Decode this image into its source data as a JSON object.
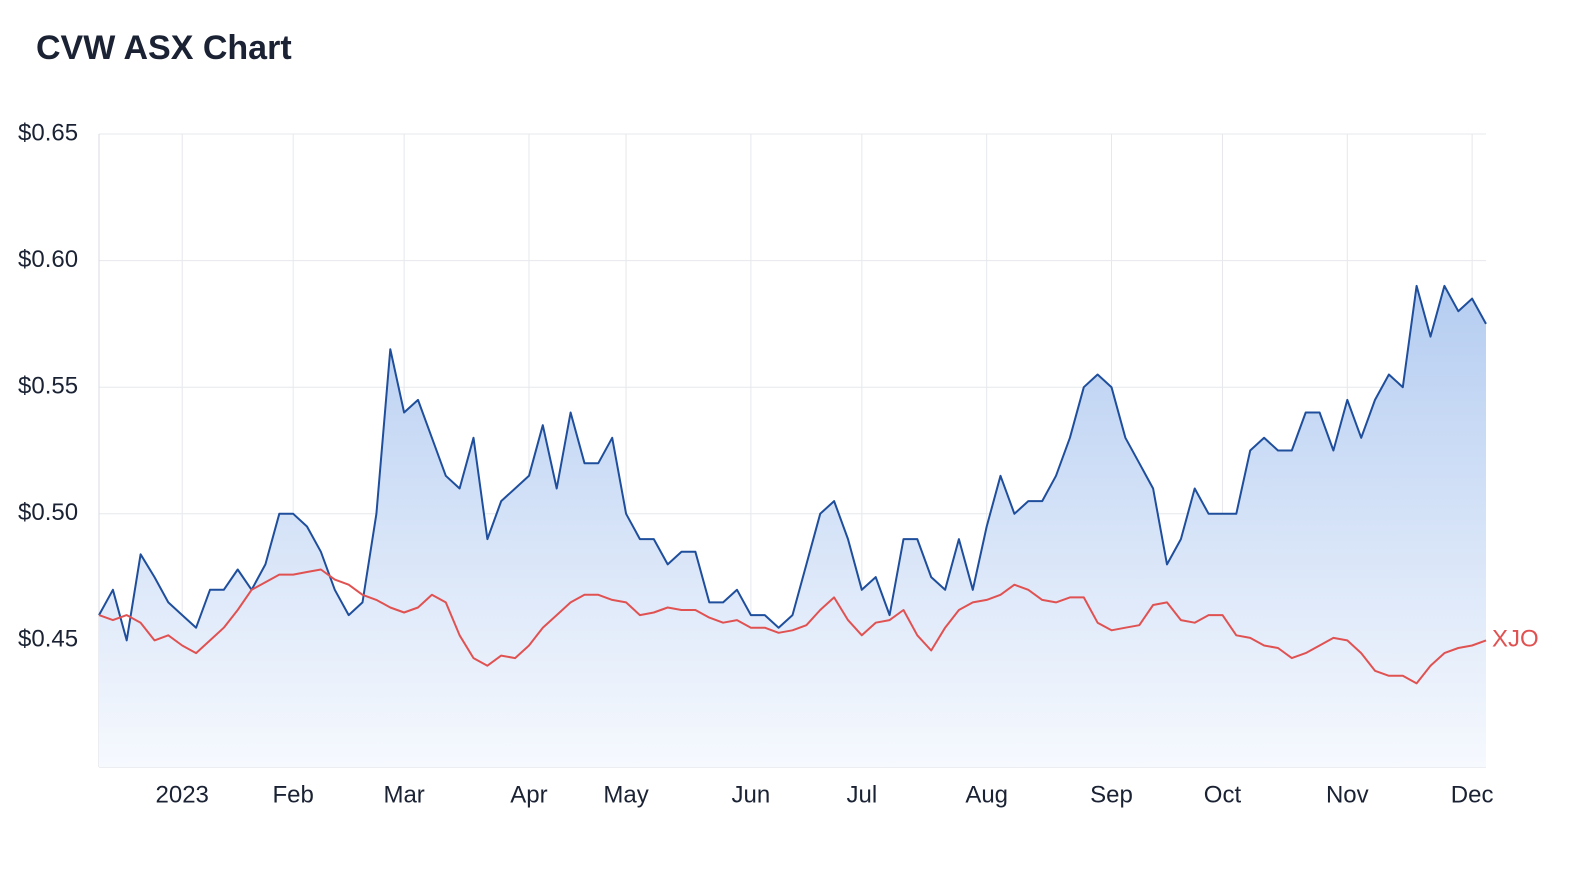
{
  "chart_data": {
    "type": "line",
    "title": "CVW ASX Chart",
    "categories": [
      null,
      null,
      null,
      null,
      null,
      null,
      "2023",
      null,
      null,
      null,
      null,
      null,
      null,
      null,
      "Feb",
      null,
      null,
      null,
      null,
      null,
      null,
      null,
      "Mar",
      null,
      null,
      null,
      null,
      null,
      null,
      null,
      null,
      "Apr",
      null,
      null,
      null,
      null,
      null,
      null,
      "May",
      null,
      null,
      null,
      null,
      null,
      null,
      null,
      null,
      "Jun",
      null,
      null,
      null,
      null,
      null,
      null,
      null,
      "Jul",
      null,
      null,
      null,
      null,
      null,
      null,
      null,
      null,
      "Aug",
      null,
      null,
      null,
      null,
      null,
      null,
      null,
      null,
      "Sep",
      null,
      null,
      null,
      null,
      null,
      null,
      null,
      "Oct",
      null,
      null,
      null,
      null,
      null,
      null,
      null,
      null,
      "Nov",
      null,
      null,
      null,
      null,
      null,
      null,
      null,
      null,
      "Dec",
      null
    ],
    "series": [
      {
        "color": "#1f4e9c",
        "area": true,
        "values": [
          0.46,
          0.47,
          0.45,
          0.484,
          0.475,
          0.465,
          0.46,
          0.455,
          0.47,
          0.47,
          0.478,
          0.47,
          0.48,
          0.5,
          0.5,
          0.495,
          0.485,
          0.47,
          0.46,
          0.465,
          0.5,
          0.565,
          0.54,
          0.545,
          0.53,
          0.515,
          0.51,
          0.53,
          0.49,
          0.505,
          0.51,
          0.515,
          0.535,
          0.51,
          0.54,
          0.52,
          0.52,
          0.53,
          0.5,
          0.49,
          0.49,
          0.48,
          0.485,
          0.485,
          0.465,
          0.465,
          0.47,
          0.46,
          0.46,
          0.455,
          0.46,
          0.48,
          0.5,
          0.505,
          0.49,
          0.47,
          0.475,
          0.46,
          0.49,
          0.49,
          0.475,
          0.47,
          0.49,
          0.47,
          0.495,
          0.515,
          0.5,
          0.505,
          0.505,
          0.515,
          0.53,
          0.55,
          0.555,
          0.55,
          0.53,
          0.52,
          0.51,
          0.48,
          0.49,
          0.51,
          0.5,
          0.5,
          0.5,
          0.525,
          0.53,
          0.525,
          0.525,
          0.54,
          0.54,
          0.525,
          0.545,
          0.53,
          0.545,
          0.555,
          0.55,
          0.59,
          0.57,
          0.59,
          0.58,
          0.585,
          0.575
        ]
      },
      {
        "name": "XJO",
        "color": "#e05252",
        "values": [
          0.46,
          0.458,
          0.46,
          0.457,
          0.45,
          0.452,
          0.448,
          0.445,
          0.45,
          0.455,
          0.462,
          0.47,
          0.473,
          0.476,
          0.476,
          0.477,
          0.478,
          0.474,
          0.472,
          0.468,
          0.466,
          0.463,
          0.461,
          0.463,
          0.468,
          0.465,
          0.452,
          0.443,
          0.44,
          0.444,
          0.443,
          0.448,
          0.455,
          0.46,
          0.465,
          0.468,
          0.468,
          0.466,
          0.465,
          0.46,
          0.461,
          0.463,
          0.462,
          0.462,
          0.459,
          0.457,
          0.458,
          0.455,
          0.455,
          0.453,
          0.454,
          0.456,
          0.462,
          0.467,
          0.458,
          0.452,
          0.457,
          0.458,
          0.462,
          0.452,
          0.446,
          0.455,
          0.462,
          0.465,
          0.466,
          0.468,
          0.472,
          0.47,
          0.466,
          0.465,
          0.467,
          0.467,
          0.457,
          0.454,
          0.455,
          0.456,
          0.464,
          0.465,
          0.458,
          0.457,
          0.46,
          0.46,
          0.452,
          0.451,
          0.448,
          0.447,
          0.443,
          0.445,
          0.448,
          0.451,
          0.45,
          0.445,
          0.438,
          0.436,
          0.436,
          0.433,
          0.44,
          0.445,
          0.447,
          0.448,
          0.45
        ]
      }
    ],
    "ylim": [
      0.4,
      0.65
    ],
    "yticks": [
      {
        "value": 0.45,
        "label": "$0.45"
      },
      {
        "value": 0.5,
        "label": "$0.50"
      },
      {
        "value": 0.55,
        "label": "$0.55"
      },
      {
        "value": 0.6,
        "label": "$0.60"
      },
      {
        "value": 0.65,
        "label": "$0.65"
      }
    ],
    "grid": true
  }
}
